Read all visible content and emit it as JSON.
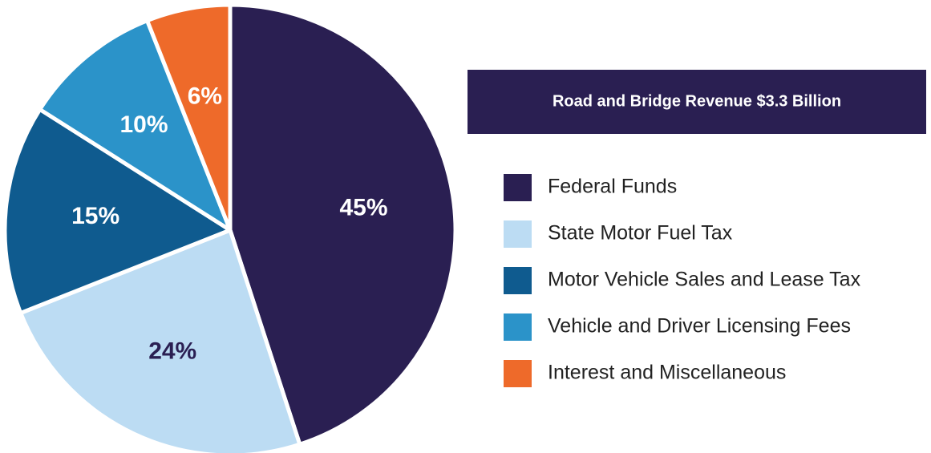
{
  "chart_data": {
    "type": "pie",
    "title": "Road and Bridge Revenue $3.3 Billion",
    "categories": [
      "Federal Funds",
      "State Motor Fuel Tax",
      "Motor Vehicle Sales and Lease Tax",
      "Vehicle and Driver Licensing Fees",
      "Interest and Miscellaneous"
    ],
    "values": [
      45,
      24,
      15,
      10,
      6
    ],
    "value_labels": [
      "45%",
      "24%",
      "15%",
      "10%",
      "6%"
    ],
    "colors": [
      "#2a1f52",
      "#bcdcf3",
      "#0f5b8f",
      "#2b93c9",
      "#ee6a2a"
    ],
    "label_colors": [
      "#ffffff",
      "#2a1f52",
      "#ffffff",
      "#ffffff",
      "#ffffff"
    ],
    "legend": "right"
  }
}
